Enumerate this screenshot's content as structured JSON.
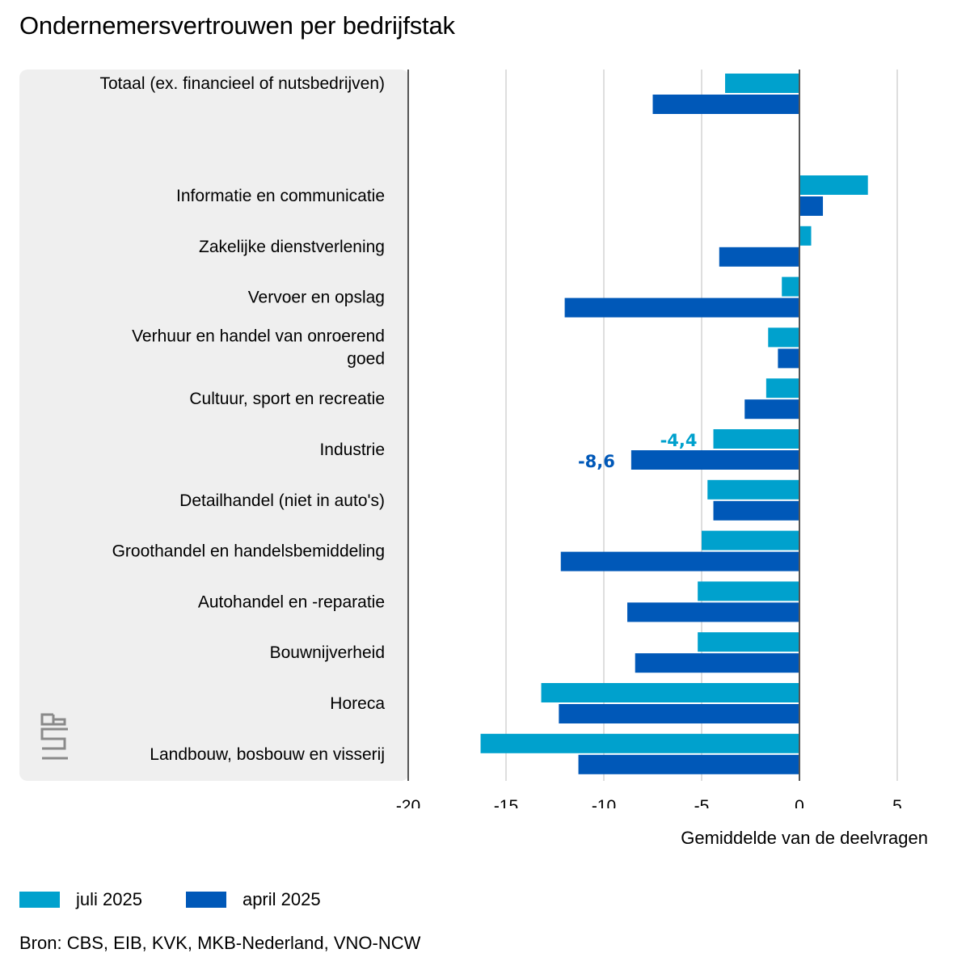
{
  "title": "Ondernemersvertrouwen per bedrijfstak",
  "source": "Bron: CBS, EIB, KVK, MKB-Nederland, VNO-NCW",
  "logo_text": "cbs",
  "colors": {
    "juli": "#00a1cd",
    "april": "#0058b8",
    "panel": "#efefef",
    "grid": "#c8c8c8",
    "axis": "#555555"
  },
  "chart_data": {
    "type": "bar",
    "orientation": "horizontal",
    "title": "Ondernemersvertrouwen per bedrijfstak",
    "xlabel": "Gemiddelde van de deelvragen",
    "ylabel": "",
    "xlim": [
      -20,
      5
    ],
    "xticks": [
      -20,
      -15,
      -10,
      -5,
      0,
      5
    ],
    "grid": true,
    "legend_position": "bottom-left",
    "categories": [
      "Totaal (ex. financieel of nutsbedrijven)",
      "Informatie en communicatie",
      "Zakelijke dienstverlening",
      "Vervoer en opslag",
      "Verhuur en handel van onroerend goed",
      "Cultuur, sport en recreatie",
      "Industrie",
      "Detailhandel (niet in auto's)",
      "Groothandel en handelsbemiddeling",
      "Autohandel en -reparatie",
      "Bouwnijverheid",
      "Horeca",
      "Landbouw, bosbouw en visserij"
    ],
    "series": [
      {
        "name": "juli 2025",
        "values": [
          -3.8,
          3.5,
          0.6,
          -0.9,
          -1.6,
          -1.7,
          -4.4,
          -4.7,
          -5.0,
          -5.2,
          -5.2,
          -13.2,
          -16.3
        ]
      },
      {
        "name": "april 2025",
        "values": [
          -7.5,
          1.2,
          -4.1,
          -12.0,
          -1.1,
          -2.8,
          -8.6,
          -4.4,
          -12.2,
          -8.8,
          -8.4,
          -12.3,
          -11.3
        ]
      }
    ],
    "annotations": [
      {
        "category": "Industrie",
        "series": "juli 2025",
        "text": "-4,4"
      },
      {
        "category": "Industrie",
        "series": "april 2025",
        "text": "-8,6"
      }
    ]
  }
}
